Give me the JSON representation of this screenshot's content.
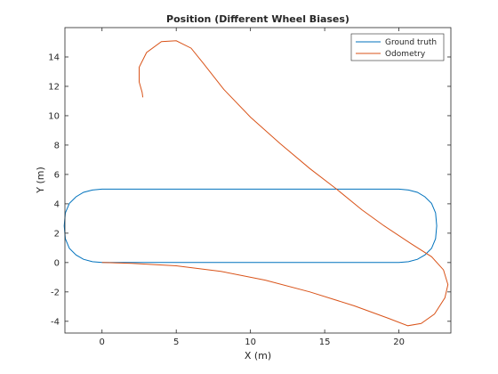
{
  "chart_data": {
    "type": "line",
    "title": "Position (Different Wheel Biases)",
    "xlabel": "X (m)",
    "ylabel": "Y (m)",
    "xlim": [
      -2.5,
      23.5
    ],
    "ylim": [
      -4.8,
      16
    ],
    "xticks": [
      0,
      5,
      10,
      15,
      20
    ],
    "yticks": [
      -4,
      -2,
      0,
      2,
      4,
      6,
      8,
      10,
      12,
      14
    ],
    "grid": false,
    "legend": "top-right",
    "series": [
      {
        "name": "Ground truth",
        "color": "#0072BD",
        "points": [
          [
            0,
            0
          ],
          [
            5,
            0
          ],
          [
            10,
            0
          ],
          [
            15,
            0
          ],
          [
            20,
            0
          ],
          [
            20.65,
            0.06
          ],
          [
            21.25,
            0.22
          ],
          [
            21.75,
            0.52
          ],
          [
            22.2,
            0.97
          ],
          [
            22.47,
            1.62
          ],
          [
            22.55,
            2.5
          ],
          [
            22.47,
            3.38
          ],
          [
            22.2,
            4.03
          ],
          [
            21.75,
            4.48
          ],
          [
            21.25,
            4.78
          ],
          [
            20.65,
            4.94
          ],
          [
            20,
            5
          ],
          [
            15,
            5
          ],
          [
            10,
            5
          ],
          [
            5,
            5
          ],
          [
            0,
            5
          ],
          [
            -0.65,
            4.94
          ],
          [
            -1.25,
            4.78
          ],
          [
            -1.75,
            4.48
          ],
          [
            -2.2,
            4.03
          ],
          [
            -2.47,
            3.38
          ],
          [
            -2.55,
            2.5
          ],
          [
            -2.47,
            1.62
          ],
          [
            -2.2,
            0.97
          ],
          [
            -1.75,
            0.52
          ],
          [
            -1.25,
            0.22
          ],
          [
            -0.65,
            0.06
          ],
          [
            0,
            0
          ]
        ]
      },
      {
        "name": "Odometry",
        "color": "#D95319",
        "points": [
          [
            0,
            0
          ],
          [
            2,
            -0.05
          ],
          [
            5,
            -0.22
          ],
          [
            8,
            -0.6
          ],
          [
            11,
            -1.2
          ],
          [
            14,
            -2.0
          ],
          [
            17,
            -2.95
          ],
          [
            19.3,
            -3.8
          ],
          [
            20.6,
            -4.3
          ],
          [
            21.5,
            -4.15
          ],
          [
            22.4,
            -3.5
          ],
          [
            23.1,
            -2.4
          ],
          [
            23.3,
            -1.5
          ],
          [
            23.0,
            -0.5
          ],
          [
            22.2,
            0.4
          ],
          [
            20.8,
            1.3
          ],
          [
            19.0,
            2.5
          ],
          [
            17.5,
            3.6
          ],
          [
            15.8,
            5.0
          ],
          [
            14.0,
            6.4
          ],
          [
            12.0,
            8.1
          ],
          [
            10.0,
            9.9
          ],
          [
            8.2,
            11.8
          ],
          [
            6.8,
            13.6
          ],
          [
            6.0,
            14.6
          ],
          [
            5.0,
            15.1
          ],
          [
            4.0,
            15.05
          ],
          [
            3.0,
            14.3
          ],
          [
            2.5,
            13.3
          ],
          [
            2.5,
            12.3
          ],
          [
            2.7,
            11.6
          ],
          [
            2.75,
            11.25
          ]
        ]
      }
    ]
  }
}
